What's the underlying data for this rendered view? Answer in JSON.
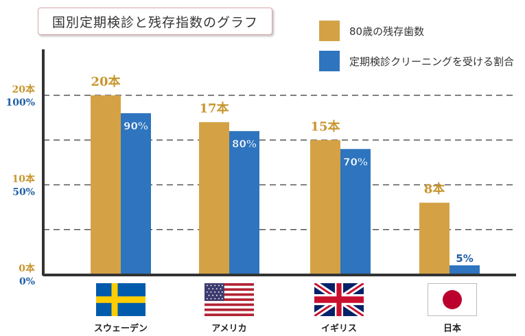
{
  "title": "国別定期検診と残存指数のグラフ",
  "colors": {
    "teeth": "#D4A245",
    "screening": "#2E74BE",
    "teeth_label": "#C8952E",
    "screening_label": "#1F5FA5",
    "grid": "#555555"
  },
  "legend": [
    {
      "label": "80歳の残存歯数",
      "color": "#D4A245"
    },
    {
      "label": "定期検診クリーニングを受ける割合",
      "color": "#2E74BE"
    }
  ],
  "chart_data": {
    "type": "bar",
    "categories": [
      "スウェーデン",
      "アメリカ",
      "イギリス",
      "日本"
    ],
    "series": [
      {
        "name": "80歳の残存歯数",
        "values": [
          20,
          17,
          15,
          8
        ],
        "value_labels": [
          "20本",
          "17本",
          "15本",
          "8本"
        ],
        "ylim": [
          0,
          20
        ]
      },
      {
        "name": "定期検診クリーニングを受ける割合",
        "values": [
          90,
          80,
          70,
          5
        ],
        "value_labels": [
          "90%",
          "80%",
          "70%",
          "5%"
        ],
        "ylim": [
          0,
          100
        ]
      }
    ],
    "left_axis_ticks": [
      "0本",
      "10本",
      "20本"
    ],
    "right_axis_ticks": [
      "0%",
      "50%",
      "100%"
    ],
    "grid": true
  },
  "flags": [
    {
      "country": "スウェーデン",
      "icon": "sweden-flag-icon"
    },
    {
      "country": "アメリカ",
      "icon": "usa-flag-icon"
    },
    {
      "country": "イギリス",
      "icon": "uk-flag-icon"
    },
    {
      "country": "日本",
      "icon": "japan-flag-icon"
    }
  ]
}
